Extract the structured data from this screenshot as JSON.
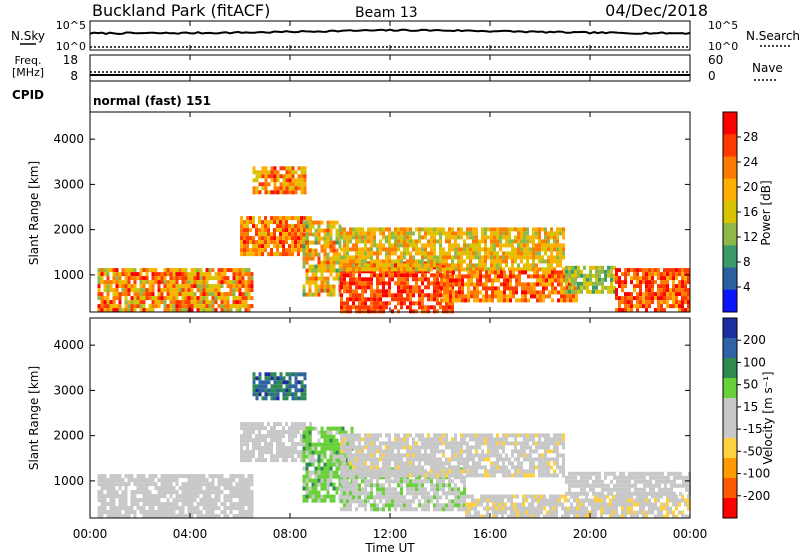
{
  "header": {
    "station": "Buckland Park (fitACF)",
    "beam": "Beam 13",
    "date": "04/Dec/2018"
  },
  "noise_panel": {
    "left_label": "N.Sky",
    "right_label": "N.Search",
    "left_ticks": [
      "10^5",
      "10^0"
    ],
    "right_ticks": [
      "10^5",
      "10^0"
    ]
  },
  "freq_panel": {
    "left_label_1": "Freq.",
    "left_label_2": "[MHz]",
    "left_ticks": [
      "18",
      "8"
    ],
    "right_label": "Nave",
    "right_ticks": [
      "60",
      "0"
    ]
  },
  "cpid_panel": {
    "label": "CPID",
    "mode": "normal (fast) 151"
  },
  "power_panel": {
    "ylabel": "Slant Range [km]",
    "yticks": [
      "4000",
      "3000",
      "2000",
      "1000"
    ],
    "colorbar_label": "Power [dB]",
    "colorbar_ticks": [
      "28",
      "24",
      "20",
      "16",
      "12",
      "8",
      "4"
    ],
    "colorbar_colors": [
      "#ff0000",
      "#ff3a00",
      "#ff7a00",
      "#ffb000",
      "#d8c400",
      "#8fb84a",
      "#3a9a6a",
      "#2c5fa0",
      "#0a14ff"
    ]
  },
  "velocity_panel": {
    "ylabel": "Slant Range [km]",
    "yticks": [
      "4000",
      "3000",
      "2000",
      "1000"
    ],
    "colorbar_label": "Velocity [m s⁻¹]",
    "colorbar_ticks": [
      "200",
      "100",
      "50",
      "15",
      "-15",
      "-50",
      "-100",
      "-200"
    ],
    "colorbar_colors": [
      "#1a2ea0",
      "#2f63a6",
      "#2f8a52",
      "#6ad03a",
      "#c8c8c8",
      "#c8c8c8",
      "#ffd040",
      "#ff9a00",
      "#ff5a00",
      "#ff0000"
    ]
  },
  "xaxis": {
    "label": "Time UT",
    "ticks": [
      "00:00",
      "04:00",
      "08:00",
      "12:00",
      "16:00",
      "20:00",
      "00:00"
    ]
  },
  "chart_data": {
    "type": "heatmap",
    "title": "Buckland Park (fitACF)",
    "x_range_hours": [
      0,
      24
    ],
    "y_range_km": [
      180,
      4600
    ],
    "power_range_db": [
      0,
      32
    ],
    "velocity_range_ms": [
      -250,
      250
    ],
    "grid": false,
    "colorbar_placement": "right",
    "power_regions": [
      {
        "t0": 0.3,
        "t1": 6.5,
        "r0": 220,
        "r1": 1150,
        "v0": 12,
        "v1": 30
      },
      {
        "t0": 6.0,
        "t1": 8.8,
        "r0": 1500,
        "r1": 2300,
        "v0": 16,
        "v1": 30
      },
      {
        "t0": 6.5,
        "t1": 8.6,
        "r0": 2800,
        "r1": 3400,
        "v0": 14,
        "v1": 30
      },
      {
        "t0": 8.5,
        "t1": 10.0,
        "r0": 600,
        "r1": 2200,
        "v0": 10,
        "v1": 26
      },
      {
        "t0": 10.0,
        "t1": 14.5,
        "r0": 220,
        "r1": 1300,
        "v0": 22,
        "v1": 31
      },
      {
        "t0": 10.0,
        "t1": 19.0,
        "r0": 1100,
        "r1": 2050,
        "v0": 12,
        "v1": 24
      },
      {
        "t0": 14.0,
        "t1": 19.5,
        "r0": 400,
        "r1": 1100,
        "v0": 18,
        "v1": 30
      },
      {
        "t0": 19.0,
        "t1": 21.0,
        "r0": 600,
        "r1": 1200,
        "v0": 8,
        "v1": 18
      },
      {
        "t0": 21.0,
        "t1": 24.0,
        "r0": 220,
        "r1": 1150,
        "v0": 20,
        "v1": 31
      }
    ],
    "velocity_regions": [
      {
        "t0": 0.3,
        "t1": 6.5,
        "r0": 220,
        "r1": 1150,
        "v0": -20,
        "v1": 15
      },
      {
        "t0": 6.0,
        "t1": 8.8,
        "r0": 1500,
        "r1": 2300,
        "v0": -15,
        "v1": 15
      },
      {
        "t0": 6.5,
        "t1": 8.6,
        "r0": 2800,
        "r1": 3400,
        "v0": 100,
        "v1": 220
      },
      {
        "t0": 8.5,
        "t1": 10.5,
        "r0": 600,
        "r1": 2200,
        "v0": 30,
        "v1": 110
      },
      {
        "t0": 10.0,
        "t1": 15.0,
        "r0": 400,
        "r1": 1300,
        "v0": 15,
        "v1": 60
      },
      {
        "t0": 10.0,
        "t1": 19.0,
        "r0": 1100,
        "r1": 2050,
        "v0": -60,
        "v1": 15
      },
      {
        "t0": 15.0,
        "t1": 24.0,
        "r0": 220,
        "r1": 700,
        "v0": -60,
        "v1": -15
      },
      {
        "t0": 19.0,
        "t1": 24.0,
        "r0": 700,
        "r1": 1200,
        "v0": -15,
        "v1": 15
      }
    ]
  }
}
